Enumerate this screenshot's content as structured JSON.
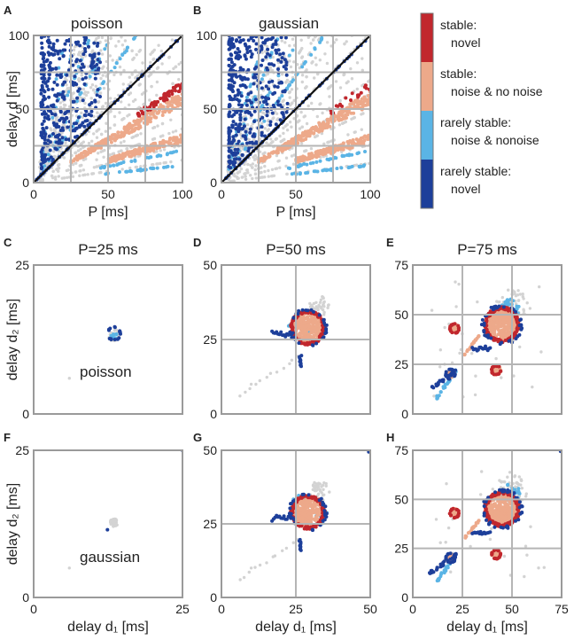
{
  "colors": {
    "stable_novel": "#c1272d",
    "stable_noise": "#eda98a",
    "rare_noise": "#5ab4e5",
    "rare_novel": "#1d3f9a",
    "background_points": "#d3d3d3",
    "grid": "#b5b5b5",
    "axis": "#9a9a9a",
    "diagonal": "#111111"
  },
  "legend": {
    "items": [
      {
        "line1": "stable:",
        "line2": "novel",
        "color": "#c1272d"
      },
      {
        "line1": "stable:",
        "line2": "noise & no noise",
        "color": "#eda98a"
      },
      {
        "line1": "rarely stable:",
        "line2": "noise & nonoise",
        "color": "#5ab4e5"
      },
      {
        "line1": "rarely stable:",
        "line2": "novel",
        "color": "#1d3f9a"
      }
    ]
  },
  "chart_data": [
    {
      "id": "A",
      "type": "scatter",
      "panel_label": "A",
      "title": "poisson",
      "xlabel": "P [ms]",
      "ylabel": "delay d [ms]",
      "xlim": [
        0,
        100
      ],
      "ylim": [
        0,
        100
      ],
      "xticks": [
        "0",
        "50",
        "100"
      ],
      "yticks": [
        "0",
        "50",
        "100"
      ],
      "gridlines": [
        25,
        50,
        75
      ],
      "diagonal": true
    },
    {
      "id": "B",
      "type": "scatter",
      "panel_label": "B",
      "title": "gaussian",
      "xlabel": "P [ms]",
      "ylabel": "",
      "xlim": [
        0,
        100
      ],
      "ylim": [
        0,
        100
      ],
      "xticks": [
        "0",
        "50",
        "100"
      ],
      "yticks": [
        "0",
        "50",
        "100"
      ],
      "gridlines": [
        25,
        50,
        75
      ],
      "diagonal": true
    },
    {
      "id": "C",
      "type": "scatter",
      "panel_label": "C",
      "title": "P=25 ms",
      "annotation": "poisson",
      "xlabel": "",
      "ylabel": "delay d₂ [ms]",
      "xlim": [
        0,
        25
      ],
      "ylim": [
        0,
        25
      ],
      "xticks": [],
      "yticks": [
        "0",
        "25"
      ],
      "gridlines": []
    },
    {
      "id": "D",
      "type": "scatter",
      "panel_label": "D",
      "title": "P=50 ms",
      "xlabel": "",
      "ylabel": "",
      "xlim": [
        0,
        50
      ],
      "ylim": [
        0,
        50
      ],
      "xticks": [],
      "yticks": [
        "0",
        "25",
        "50"
      ],
      "gridlines": [
        25
      ]
    },
    {
      "id": "E",
      "type": "scatter",
      "panel_label": "E",
      "title": "P=75 ms",
      "xlabel": "",
      "ylabel": "",
      "xlim": [
        0,
        75
      ],
      "ylim": [
        0,
        75
      ],
      "xticks": [],
      "yticks": [
        "0",
        "25",
        "50",
        "75"
      ],
      "gridlines": [
        25,
        50
      ]
    },
    {
      "id": "F",
      "type": "scatter",
      "panel_label": "F",
      "title": "",
      "annotation": "gaussian",
      "xlabel": "delay d₁ [ms]",
      "ylabel": "delay d₂ [ms]",
      "xlim": [
        0,
        25
      ],
      "ylim": [
        0,
        25
      ],
      "xticks": [
        "0",
        "25"
      ],
      "yticks": [
        "0",
        "25"
      ],
      "gridlines": []
    },
    {
      "id": "G",
      "type": "scatter",
      "panel_label": "G",
      "title": "",
      "xlabel": "delay d₁ [ms]",
      "ylabel": "",
      "xlim": [
        0,
        50
      ],
      "ylim": [
        0,
        50
      ],
      "xticks": [
        "0",
        "25",
        "50"
      ],
      "yticks": [
        "0",
        "25",
        "50"
      ],
      "gridlines": [
        25
      ]
    },
    {
      "id": "H",
      "type": "scatter",
      "panel_label": "H",
      "title": "",
      "xlabel": "delay d₁ [ms]",
      "ylabel": "",
      "xlim": [
        0,
        75
      ],
      "ylim": [
        0,
        75
      ],
      "xticks": [
        "0",
        "25",
        "50",
        "75"
      ],
      "yticks": [
        "0",
        "25",
        "50",
        "75"
      ],
      "gridlines": [
        25,
        50
      ]
    }
  ]
}
